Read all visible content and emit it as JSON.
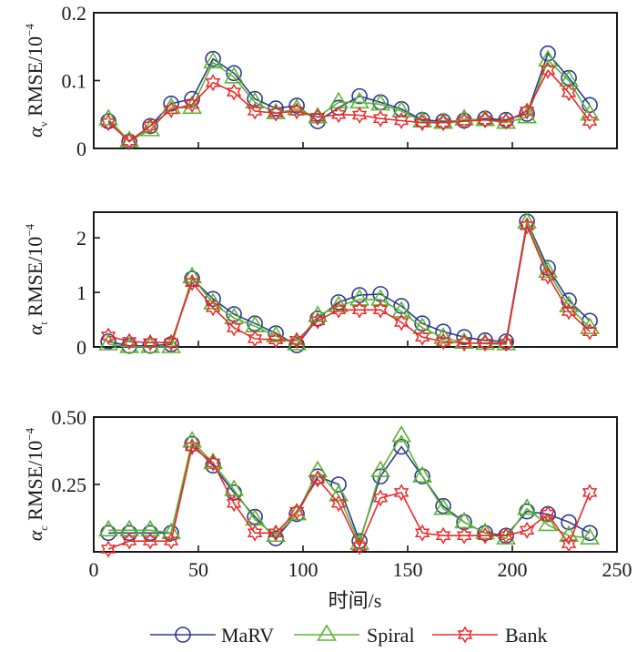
{
  "chart_data": {
    "type": "line",
    "xlabel": "时间/s",
    "xlim": [
      0,
      250
    ],
    "xticks": [
      0,
      50,
      100,
      150,
      200,
      250
    ],
    "x": [
      7,
      17,
      27,
      37,
      47,
      57,
      67,
      77,
      87,
      97,
      107,
      117,
      127,
      137,
      147,
      157,
      167,
      177,
      187,
      197,
      207,
      217,
      227,
      237
    ],
    "legend": {
      "placement": "bottom-center",
      "entries": [
        {
          "name": "MaRV",
          "color": "#2b3990",
          "marker": "circle"
        },
        {
          "name": "Spiral",
          "color": "#5bb431",
          "marker": "triangle"
        },
        {
          "name": "Bank",
          "color": "#ec2a2a",
          "marker": "hexagram"
        }
      ]
    },
    "panels": [
      {
        "ylabel_symbol": "α",
        "ylabel_sub": "v",
        "ylabel_text": " RMSE/10",
        "ylabel_exp": "−4",
        "ylim": [
          0,
          0.2
        ],
        "yticks": [
          0,
          0.1,
          0.2
        ],
        "ytick_labels": [
          "0",
          "0.1",
          "0.2"
        ],
        "series": [
          {
            "name": "MaRV",
            "values": [
              0.04,
              0.01,
              0.033,
              0.066,
              0.073,
              0.132,
              0.111,
              0.073,
              0.059,
              0.063,
              0.04,
              0.06,
              0.077,
              0.068,
              0.058,
              0.042,
              0.04,
              0.041,
              0.044,
              0.042,
              0.051,
              0.14,
              0.104,
              0.064
            ]
          },
          {
            "name": "Spiral",
            "values": [
              0.043,
              0.011,
              0.027,
              0.06,
              0.06,
              0.127,
              0.105,
              0.068,
              0.052,
              0.058,
              0.046,
              0.068,
              0.068,
              0.065,
              0.055,
              0.04,
              0.038,
              0.043,
              0.042,
              0.038,
              0.046,
              0.13,
              0.1,
              0.05
            ]
          },
          {
            "name": "Bank",
            "values": [
              0.038,
              0.011,
              0.033,
              0.057,
              0.065,
              0.097,
              0.083,
              0.055,
              0.052,
              0.055,
              0.046,
              0.05,
              0.049,
              0.044,
              0.041,
              0.038,
              0.038,
              0.04,
              0.042,
              0.04,
              0.055,
              0.115,
              0.082,
              0.04
            ]
          }
        ]
      },
      {
        "ylabel_symbol": "α",
        "ylabel_sub": "t",
        "ylabel_text": " RMSE/10",
        "ylabel_exp": "−4",
        "ylim": [
          0,
          2.47
        ],
        "yticks": [
          0,
          1,
          2
        ],
        "ytick_labels": [
          "0",
          "1",
          "2"
        ],
        "series": [
          {
            "name": "MaRV",
            "values": [
              0.1,
              0.02,
              0.02,
              0.05,
              1.25,
              0.88,
              0.6,
              0.43,
              0.25,
              0.03,
              0.52,
              0.82,
              0.95,
              0.97,
              0.75,
              0.43,
              0.28,
              0.18,
              0.12,
              0.1,
              2.3,
              1.45,
              0.85,
              0.48
            ]
          },
          {
            "name": "Spiral",
            "values": [
              0.05,
              0.0,
              0.0,
              0.0,
              1.28,
              0.8,
              0.53,
              0.38,
              0.2,
              0.05,
              0.57,
              0.75,
              0.87,
              0.87,
              0.65,
              0.35,
              0.17,
              0.08,
              0.06,
              0.05,
              2.28,
              1.38,
              0.75,
              0.35
            ]
          },
          {
            "name": "Bank",
            "values": [
              0.2,
              0.1,
              0.08,
              0.08,
              1.18,
              0.72,
              0.35,
              0.15,
              0.13,
              0.12,
              0.48,
              0.68,
              0.68,
              0.68,
              0.45,
              0.18,
              0.1,
              0.07,
              0.07,
              0.07,
              2.22,
              1.3,
              0.65,
              0.28
            ]
          }
        ]
      },
      {
        "ylabel_symbol": "α",
        "ylabel_sub": "c",
        "ylabel_text": " RMSE/10",
        "ylabel_exp": "−4",
        "ylim": [
          0,
          0.5
        ],
        "yticks": [
          0.25,
          0.5
        ],
        "ytick_labels": [
          "0.25",
          "0.50"
        ],
        "series": [
          {
            "name": "MaRV",
            "values": [
              0.07,
              0.07,
              0.07,
              0.07,
              0.4,
              0.32,
              0.22,
              0.13,
              0.05,
              0.14,
              0.28,
              0.25,
              0.04,
              0.28,
              0.39,
              0.28,
              0.17,
              0.11,
              0.07,
              0.06,
              0.15,
              0.14,
              0.11,
              0.07
            ]
          },
          {
            "name": "Spiral",
            "values": [
              0.08,
              0.08,
              0.08,
              0.07,
              0.41,
              0.33,
              0.23,
              0.12,
              0.06,
              0.14,
              0.3,
              0.21,
              0.03,
              0.3,
              0.43,
              0.28,
              0.16,
              0.11,
              0.07,
              0.05,
              0.16,
              0.1,
              0.06,
              0.05
            ]
          },
          {
            "name": "Bank",
            "values": [
              0.01,
              0.04,
              0.04,
              0.04,
              0.39,
              0.33,
              0.18,
              0.07,
              0.07,
              0.15,
              0.27,
              0.18,
              0.02,
              0.2,
              0.22,
              0.07,
              0.06,
              0.06,
              0.06,
              0.06,
              0.08,
              0.14,
              0.03,
              0.22
            ]
          }
        ]
      }
    ]
  }
}
